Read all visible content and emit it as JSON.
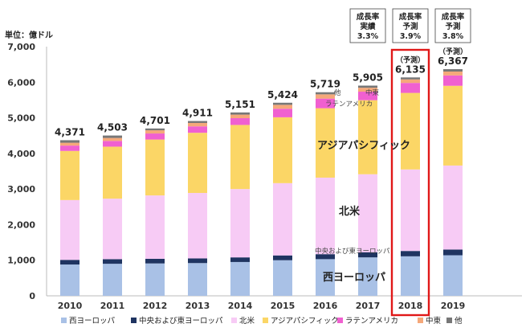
{
  "chart_data": {
    "type": "bar",
    "stacked": true,
    "unit_label": "単位：億ドル",
    "categories": [
      "2010",
      "2011",
      "2012",
      "2013",
      "2014",
      "2015",
      "2016",
      "2017",
      "2018",
      "2019"
    ],
    "totals": [
      "4,371",
      "4,503",
      "4,701",
      "4,911",
      "5,151",
      "5,424",
      "5,719",
      "5,905",
      "6,135",
      "6,367"
    ],
    "ylim": [
      0,
      7000
    ],
    "yticks": [
      "0",
      "1,000",
      "2,000",
      "3,000",
      "4,000",
      "5,000",
      "6,000",
      "7,000"
    ],
    "series": [
      {
        "name": "西ヨーロッパ",
        "color": "#a9c1e6",
        "values": [
          880,
          900,
          910,
          920,
          950,
          1000,
          1030,
          1080,
          1110,
          1140
        ]
      },
      {
        "name": "中央および東ヨーロッパ",
        "color": "#1f3461",
        "values": [
          130,
          130,
          130,
          130,
          130,
          135,
          140,
          145,
          150,
          160
        ]
      },
      {
        "name": "北米",
        "color": "#f7cbf5",
        "values": [
          1680,
          1700,
          1780,
          1840,
          1920,
          2030,
          2150,
          2190,
          2290,
          2360
        ]
      },
      {
        "name": "アジアパシフィック",
        "color": "#fbd666",
        "values": [
          1380,
          1460,
          1570,
          1690,
          1800,
          1850,
          1950,
          2080,
          2150,
          2240
        ]
      },
      {
        "name": "ラテンアメリカ",
        "color": "#f060d0",
        "values": [
          150,
          160,
          170,
          180,
          190,
          240,
          270,
          240,
          280,
          290
        ]
      },
      {
        "name": "中東",
        "color": "#f5a87a",
        "values": [
          80,
          85,
          90,
          95,
          100,
          110,
          120,
          110,
          100,
          110
        ]
      },
      {
        "name": "他",
        "color": "#777777",
        "values": [
          71,
          68,
          51,
          56,
          61,
          59,
          59,
          60,
          55,
          67
        ]
      }
    ],
    "forecast_note": "（予測）",
    "highlight_category": "2018",
    "growth_boxes": [
      {
        "category": "2017",
        "label": "成長率",
        "type": "実績",
        "value": "3.3%"
      },
      {
        "category": "2018",
        "label": "成長率",
        "type": "予測",
        "value": "3.9%"
      },
      {
        "category": "2019",
        "label": "成長率",
        "type": "予測",
        "value": "3.8%"
      }
    ],
    "annotations": {
      "other": "他",
      "mideast": "中東",
      "latin": "ラテンアメリカ",
      "asia": "アジアパシフィック",
      "na": "北米",
      "ce": "中央および東ヨーロッパ",
      "we": "西ヨーロッパ"
    }
  }
}
